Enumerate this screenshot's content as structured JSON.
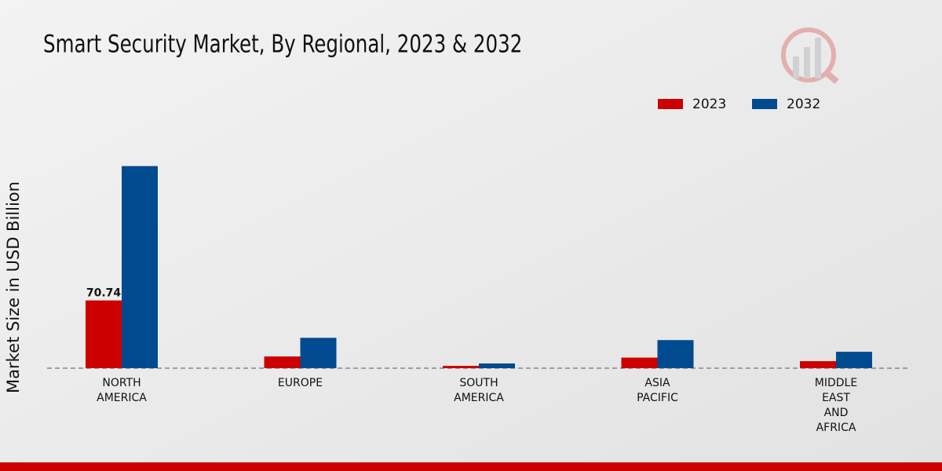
{
  "chart_data": {
    "type": "bar",
    "title": "Smart Security Market, By Regional, 2023 & 2032",
    "y_label": "Market Size in USD Billion",
    "categories": [
      "NORTH AMERICA",
      "EUROPE",
      "SOUTH AMERICA",
      "ASIA PACIFIC",
      "MIDDLE EAST AND AFRICA"
    ],
    "series": [
      {
        "name": "2023",
        "color": "#cc0000",
        "values": [
          70.74,
          12.2,
          2.4,
          11.0,
          7.3
        ]
      },
      {
        "name": "2032",
        "color": "#004a8f",
        "values": [
          211.0,
          31.7,
          4.9,
          29.3,
          17.1
        ]
      }
    ],
    "ylim": [
      0,
      250
    ]
  }
}
